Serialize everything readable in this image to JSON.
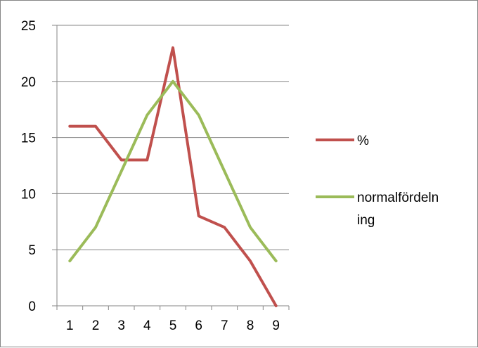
{
  "chart_data": {
    "type": "line",
    "title": "",
    "xlabel": "",
    "ylabel": "",
    "categories": [
      "1",
      "2",
      "3",
      "4",
      "5",
      "6",
      "7",
      "8",
      "9"
    ],
    "ylim": [
      0,
      25
    ],
    "yticks": [
      0,
      5,
      10,
      15,
      20,
      25
    ],
    "grid": "horizontal",
    "legend_position": "right",
    "series": [
      {
        "name": "%",
        "color": "#C0504D",
        "values": [
          16,
          16,
          13,
          13,
          23,
          8,
          7,
          4,
          0
        ]
      },
      {
        "name": "normalfördelning",
        "legend_lines": [
          "normalfördeln",
          "ing"
        ],
        "color": "#9BBB59",
        "values": [
          4,
          7,
          12,
          17,
          20,
          17,
          12,
          7,
          4
        ]
      }
    ]
  }
}
